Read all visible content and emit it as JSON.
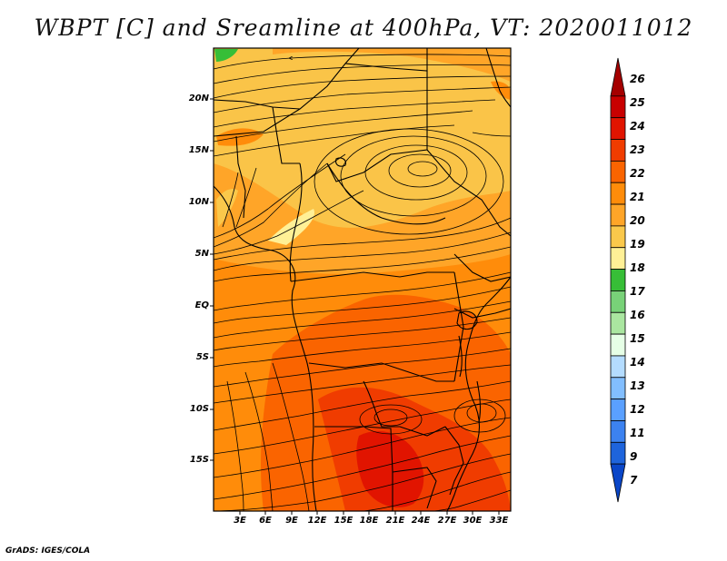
{
  "title": "WBPT [C] and Sreamline at 400hPa, VT: 2020011012",
  "credit": "GrADS: IGES/COLA",
  "map": {
    "lat_labels": [
      "20N",
      "15N",
      "10N",
      "5N",
      "EQ",
      "5S",
      "10S",
      "15S"
    ],
    "lon_labels": [
      "3E",
      "6E",
      "9E",
      "12E",
      "15E",
      "18E",
      "21E",
      "24E",
      "27E",
      "30E",
      "33E"
    ],
    "field": "Wet-bulb potential temperature (WBPT) with streamlines at 400 hPa",
    "features": [
      "anticyclonic circulation near 13N 24E",
      "warm core 22-24C over southern Africa",
      "green spot in far north-west corner"
    ]
  },
  "colorbar": {
    "labels": [
      "26",
      "25",
      "24",
      "23",
      "22",
      "21",
      "20",
      "19",
      "18",
      "17",
      "16",
      "15",
      "14",
      "13",
      "12",
      "11",
      "9",
      "7"
    ],
    "colors": [
      "#a50000",
      "#c80000",
      "#e11400",
      "#f03c00",
      "#fa6400",
      "#ff8c0a",
      "#ffa528",
      "#fac84b",
      "#fff096",
      "#37be37",
      "#78d278",
      "#aae6a0",
      "#e6ffe6",
      "#b4dcff",
      "#82beff",
      "#5aa0ff",
      "#3c82f0",
      "#1e64dc",
      "#0a46c8"
    ]
  }
}
